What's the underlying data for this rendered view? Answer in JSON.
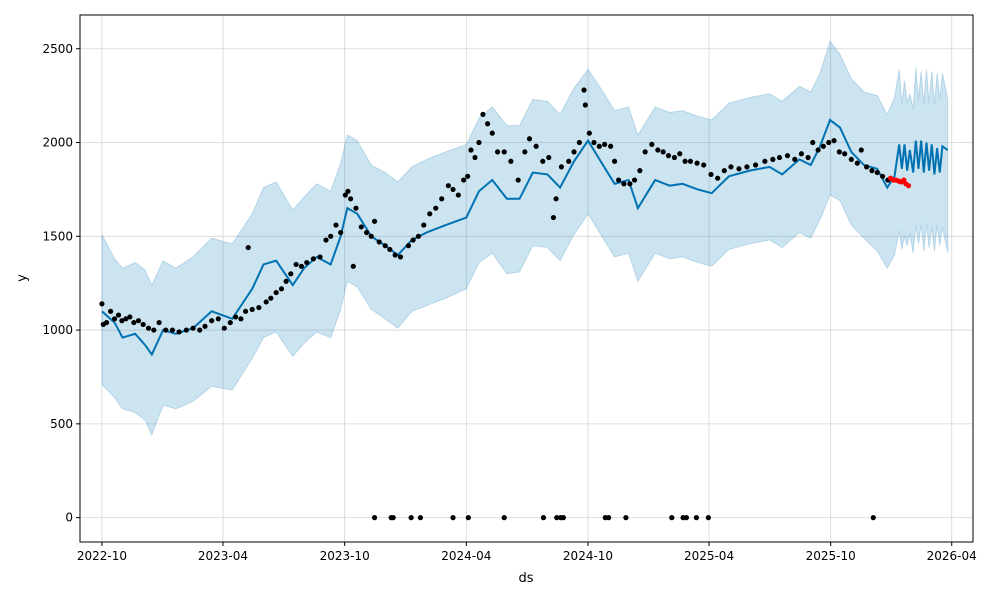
{
  "chart_data": {
    "type": "line",
    "title": "",
    "xlabel": "ds",
    "ylabel": "y",
    "ylim": [
      -130,
      2680
    ],
    "xlim": [
      "2022-08-29",
      "2026-05-03"
    ],
    "grid": true,
    "x_ticks": [
      "2022-10",
      "2023-04",
      "2023-10",
      "2024-04",
      "2024-10",
      "2025-04",
      "2025-10",
      "2026-04"
    ],
    "y_ticks": [
      0,
      500,
      1000,
      1500,
      2000,
      2500
    ],
    "colors": {
      "forecast": "#0072B2",
      "band": "#0072B2",
      "actual": "#000000",
      "test": "#FF0000"
    },
    "forecast": [
      [
        "2022-10-01",
        1100,
        710,
        1510
      ],
      [
        "2022-10-20",
        1040,
        640,
        1380
      ],
      [
        "2022-11-01",
        960,
        580,
        1330
      ],
      [
        "2022-11-20",
        980,
        560,
        1360
      ],
      [
        "2022-12-05",
        920,
        520,
        1320
      ],
      [
        "2022-12-15",
        870,
        440,
        1240
      ],
      [
        "2023-01-01",
        1000,
        600,
        1370
      ],
      [
        "2023-01-20",
        980,
        580,
        1330
      ],
      [
        "2023-02-15",
        1010,
        620,
        1390
      ],
      [
        "2023-03-15",
        1100,
        700,
        1490
      ],
      [
        "2023-04-15",
        1060,
        680,
        1460
      ],
      [
        "2023-05-15",
        1220,
        850,
        1620
      ],
      [
        "2023-06-01",
        1350,
        960,
        1760
      ],
      [
        "2023-06-20",
        1370,
        990,
        1790
      ],
      [
        "2023-07-15",
        1240,
        860,
        1640
      ],
      [
        "2023-08-01",
        1330,
        930,
        1710
      ],
      [
        "2023-08-20",
        1390,
        990,
        1780
      ],
      [
        "2023-09-10",
        1350,
        960,
        1740
      ],
      [
        "2023-09-25",
        1500,
        1110,
        1890
      ],
      [
        "2023-10-05",
        1650,
        1260,
        2040
      ],
      [
        "2023-10-20",
        1620,
        1230,
        2010
      ],
      [
        "2023-11-10",
        1500,
        1110,
        1880
      ],
      [
        "2023-12-01",
        1450,
        1060,
        1840
      ],
      [
        "2023-12-20",
        1400,
        1010,
        1790
      ],
      [
        "2024-01-10",
        1480,
        1100,
        1870
      ],
      [
        "2024-02-01",
        1520,
        1130,
        1910
      ],
      [
        "2024-03-01",
        1560,
        1170,
        1950
      ],
      [
        "2024-04-01",
        1600,
        1220,
        1990
      ],
      [
        "2024-04-20",
        1740,
        1360,
        2130
      ],
      [
        "2024-05-10",
        1800,
        1410,
        2190
      ],
      [
        "2024-06-01",
        1700,
        1300,
        2090
      ],
      [
        "2024-06-20",
        1700,
        1310,
        2090
      ],
      [
        "2024-07-10",
        1840,
        1450,
        2230
      ],
      [
        "2024-08-01",
        1830,
        1440,
        2220
      ],
      [
        "2024-08-20",
        1760,
        1370,
        2150
      ],
      [
        "2024-09-10",
        1900,
        1510,
        2290
      ],
      [
        "2024-10-01",
        2010,
        1620,
        2390
      ],
      [
        "2024-10-20",
        1900,
        1510,
        2290
      ],
      [
        "2024-11-10",
        1780,
        1390,
        2170
      ],
      [
        "2024-12-01",
        1800,
        1410,
        2190
      ],
      [
        "2024-12-15",
        1650,
        1260,
        2040
      ],
      [
        "2025-01-10",
        1800,
        1410,
        2190
      ],
      [
        "2025-02-01",
        1770,
        1380,
        2160
      ],
      [
        "2025-02-20",
        1780,
        1390,
        2170
      ],
      [
        "2025-03-15",
        1750,
        1360,
        2140
      ],
      [
        "2025-04-05",
        1730,
        1340,
        2120
      ],
      [
        "2025-05-01",
        1820,
        1430,
        2210
      ],
      [
        "2025-06-01",
        1850,
        1460,
        2240
      ],
      [
        "2025-07-01",
        1870,
        1480,
        2260
      ],
      [
        "2025-07-20",
        1830,
        1440,
        2220
      ],
      [
        "2025-08-15",
        1910,
        1520,
        2300
      ],
      [
        "2025-09-01",
        1880,
        1490,
        2270
      ],
      [
        "2025-09-15",
        1980,
        1590,
        2370
      ],
      [
        "2025-09-30",
        2120,
        1720,
        2540
      ],
      [
        "2025-10-15",
        2080,
        1690,
        2470
      ],
      [
        "2025-11-01",
        1950,
        1560,
        2340
      ],
      [
        "2025-11-20",
        1880,
        1490,
        2270
      ],
      [
        "2025-12-10",
        1860,
        1420,
        2250
      ],
      [
        "2025-12-25",
        1760,
        1330,
        2150
      ],
      [
        "2026-01-05",
        1820,
        1400,
        2240
      ],
      [
        "2026-01-12",
        1990,
        1530,
        2390
      ],
      [
        "2026-01-16",
        1860,
        1430,
        2200
      ],
      [
        "2026-01-20",
        1990,
        1500,
        2330
      ],
      [
        "2026-01-24",
        1850,
        1450,
        2210
      ],
      [
        "2026-01-28",
        1960,
        1520,
        2260
      ],
      [
        "2026-02-02",
        1840,
        1410,
        2180
      ],
      [
        "2026-02-06",
        2010,
        1560,
        2400
      ],
      [
        "2026-02-10",
        1860,
        1460,
        2230
      ],
      [
        "2026-02-14",
        2010,
        1560,
        2380
      ],
      [
        "2026-02-18",
        1840,
        1420,
        2200
      ],
      [
        "2026-02-22",
        2000,
        1570,
        2390
      ],
      [
        "2026-02-26",
        1850,
        1440,
        2210
      ],
      [
        "2026-03-02",
        1990,
        1550,
        2380
      ],
      [
        "2026-03-06",
        1830,
        1420,
        2200
      ],
      [
        "2026-03-10",
        1970,
        1560,
        2370
      ],
      [
        "2026-03-14",
        1840,
        1450,
        2230
      ],
      [
        "2026-03-18",
        1980,
        1550,
        2370
      ],
      [
        "2026-03-26",
        1960,
        1410,
        2230
      ]
    ],
    "actual": [
      [
        "2022-10-01",
        1140
      ],
      [
        "2022-10-03",
        1030
      ],
      [
        "2022-10-08",
        1040
      ],
      [
        "2022-10-14",
        1100
      ],
      [
        "2022-10-20",
        1060
      ],
      [
        "2022-10-26",
        1080
      ],
      [
        "2022-10-31",
        1050
      ],
      [
        "2022-11-06",
        1060
      ],
      [
        "2022-11-12",
        1070
      ],
      [
        "2022-11-18",
        1040
      ],
      [
        "2022-11-25",
        1050
      ],
      [
        "2022-12-02",
        1030
      ],
      [
        "2022-12-10",
        1010
      ],
      [
        "2022-12-18",
        1000
      ],
      [
        "2022-12-26",
        1040
      ],
      [
        "2023-01-05",
        1000
      ],
      [
        "2023-01-15",
        1000
      ],
      [
        "2023-01-25",
        990
      ],
      [
        "2023-02-05",
        1000
      ],
      [
        "2023-02-15",
        1010
      ],
      [
        "2023-02-25",
        1000
      ],
      [
        "2023-03-05",
        1020
      ],
      [
        "2023-03-15",
        1050
      ],
      [
        "2023-03-25",
        1060
      ],
      [
        "2023-04-03",
        1010
      ],
      [
        "2023-04-12",
        1040
      ],
      [
        "2023-04-20",
        1070
      ],
      [
        "2023-04-28",
        1060
      ],
      [
        "2023-05-05",
        1100
      ],
      [
        "2023-05-09",
        1440
      ],
      [
        "2023-05-15",
        1110
      ],
      [
        "2023-05-25",
        1120
      ],
      [
        "2023-06-05",
        1150
      ],
      [
        "2023-06-12",
        1170
      ],
      [
        "2023-06-20",
        1200
      ],
      [
        "2023-06-28",
        1220
      ],
      [
        "2023-07-05",
        1260
      ],
      [
        "2023-07-12",
        1300
      ],
      [
        "2023-07-20",
        1350
      ],
      [
        "2023-07-28",
        1340
      ],
      [
        "2023-08-05",
        1360
      ],
      [
        "2023-08-15",
        1380
      ],
      [
        "2023-08-25",
        1390
      ],
      [
        "2023-09-03",
        1480
      ],
      [
        "2023-09-10",
        1500
      ],
      [
        "2023-09-18",
        1560
      ],
      [
        "2023-09-25",
        1520
      ],
      [
        "2023-10-02",
        1720
      ],
      [
        "2023-10-06",
        1740
      ],
      [
        "2023-10-10",
        1700
      ],
      [
        "2023-10-14",
        1340
      ],
      [
        "2023-10-18",
        1650
      ],
      [
        "2023-10-26",
        1550
      ],
      [
        "2023-11-03",
        1520
      ],
      [
        "2023-11-10",
        1500
      ],
      [
        "2023-11-15",
        1580
      ],
      [
        "2023-11-22",
        1470
      ],
      [
        "2023-12-01",
        1450
      ],
      [
        "2023-12-08",
        1430
      ],
      [
        "2023-12-16",
        1400
      ],
      [
        "2023-12-24",
        1390
      ],
      [
        "2024-01-05",
        1450
      ],
      [
        "2024-01-12",
        1480
      ],
      [
        "2024-01-20",
        1500
      ],
      [
        "2024-01-28",
        1560
      ],
      [
        "2024-02-06",
        1620
      ],
      [
        "2024-02-15",
        1650
      ],
      [
        "2024-02-24",
        1700
      ],
      [
        "2024-03-05",
        1770
      ],
      [
        "2024-03-12",
        1750
      ],
      [
        "2024-03-20",
        1720
      ],
      [
        "2024-03-28",
        1800
      ],
      [
        "2024-04-03",
        1820
      ],
      [
        "2024-04-08",
        1960
      ],
      [
        "2024-04-14",
        1920
      ],
      [
        "2024-04-20",
        2000
      ],
      [
        "2024-04-26",
        2150
      ],
      [
        "2024-05-03",
        2100
      ],
      [
        "2024-05-10",
        2050
      ],
      [
        "2024-05-18",
        1950
      ],
      [
        "2024-05-28",
        1950
      ],
      [
        "2024-06-07",
        1900
      ],
      [
        "2024-06-18",
        1800
      ],
      [
        "2024-06-28",
        1950
      ],
      [
        "2024-07-05",
        2020
      ],
      [
        "2024-07-15",
        1980
      ],
      [
        "2024-07-25",
        1900
      ],
      [
        "2024-08-03",
        1920
      ],
      [
        "2024-08-10",
        1600
      ],
      [
        "2024-08-14",
        1700
      ],
      [
        "2024-08-22",
        1870
      ],
      [
        "2024-09-02",
        1900
      ],
      [
        "2024-09-10",
        1950
      ],
      [
        "2024-09-18",
        2000
      ],
      [
        "2024-09-25",
        2280
      ],
      [
        "2024-09-27",
        2200
      ],
      [
        "2024-10-03",
        2050
      ],
      [
        "2024-10-10",
        2000
      ],
      [
        "2024-10-18",
        1980
      ],
      [
        "2024-10-26",
        1990
      ],
      [
        "2024-11-04",
        1980
      ],
      [
        "2024-11-10",
        1900
      ],
      [
        "2024-11-16",
        1800
      ],
      [
        "2024-11-24",
        1780
      ],
      [
        "2024-12-03",
        1780
      ],
      [
        "2024-12-10",
        1800
      ],
      [
        "2024-12-18",
        1850
      ],
      [
        "2024-12-26",
        1950
      ],
      [
        "2025-01-05",
        1990
      ],
      [
        "2025-01-14",
        1960
      ],
      [
        "2025-01-22",
        1950
      ],
      [
        "2025-01-30",
        1930
      ],
      [
        "2025-02-08",
        1920
      ],
      [
        "2025-02-16",
        1940
      ],
      [
        "2025-02-24",
        1900
      ],
      [
        "2025-03-04",
        1900
      ],
      [
        "2025-03-14",
        1890
      ],
      [
        "2025-03-24",
        1880
      ],
      [
        "2025-04-04",
        1830
      ],
      [
        "2025-04-14",
        1810
      ],
      [
        "2025-04-24",
        1850
      ],
      [
        "2025-05-04",
        1870
      ],
      [
        "2025-05-16",
        1860
      ],
      [
        "2025-05-28",
        1870
      ],
      [
        "2025-06-10",
        1880
      ],
      [
        "2025-06-24",
        1900
      ],
      [
        "2025-07-06",
        1910
      ],
      [
        "2025-07-16",
        1920
      ],
      [
        "2025-07-28",
        1930
      ],
      [
        "2025-08-08",
        1910
      ],
      [
        "2025-08-18",
        1940
      ],
      [
        "2025-08-28",
        1920
      ],
      [
        "2025-09-04",
        2000
      ],
      [
        "2025-09-12",
        1960
      ],
      [
        "2025-09-20",
        1980
      ],
      [
        "2025-09-28",
        2000
      ],
      [
        "2025-10-06",
        2010
      ],
      [
        "2025-10-14",
        1950
      ],
      [
        "2025-10-22",
        1940
      ],
      [
        "2025-11-01",
        1910
      ],
      [
        "2025-11-10",
        1890
      ],
      [
        "2025-11-16",
        1960
      ],
      [
        "2025-11-24",
        1870
      ],
      [
        "2025-12-02",
        1850
      ],
      [
        "2025-12-10",
        1840
      ],
      [
        "2025-12-18",
        1820
      ],
      [
        "2025-12-26",
        1800
      ],
      [
        "2023-11-15",
        0
      ],
      [
        "2023-12-10",
        0
      ],
      [
        "2023-12-13",
        0
      ],
      [
        "2024-01-09",
        0
      ],
      [
        "2024-01-23",
        0
      ],
      [
        "2024-03-12",
        0
      ],
      [
        "2024-04-04",
        0
      ],
      [
        "2024-05-28",
        0
      ],
      [
        "2024-07-26",
        0
      ],
      [
        "2024-08-15",
        0
      ],
      [
        "2024-08-21",
        0
      ],
      [
        "2024-08-25",
        0
      ],
      [
        "2024-10-27",
        0
      ],
      [
        "2024-11-01",
        0
      ],
      [
        "2024-11-27",
        0
      ],
      [
        "2025-02-04",
        0
      ],
      [
        "2025-02-21",
        0
      ],
      [
        "2025-02-26",
        0
      ],
      [
        "2025-03-13",
        0
      ],
      [
        "2025-03-31",
        0
      ],
      [
        "2025-12-04",
        0
      ]
    ],
    "test": [
      [
        "2025-12-30",
        1810
      ],
      [
        "2026-01-03",
        1800
      ],
      [
        "2026-01-07",
        1800
      ],
      [
        "2026-01-11",
        1795
      ],
      [
        "2026-01-15",
        1790
      ],
      [
        "2026-01-19",
        1800
      ],
      [
        "2026-01-22",
        1780
      ],
      [
        "2026-01-26",
        1770
      ]
    ]
  }
}
